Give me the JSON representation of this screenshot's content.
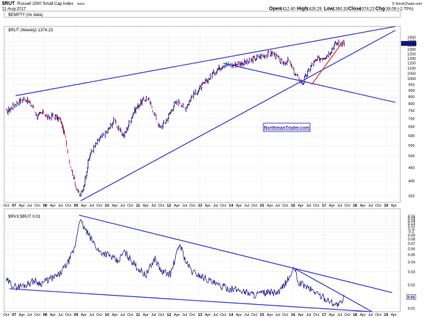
{
  "header": {
    "symbol": "$RUT",
    "name": "Russell 2000 Small Cap Index",
    "exchange": "INDX",
    "date": "11-Aug-2017",
    "open_label": "Open",
    "open": "1412.40",
    "high_label": "High",
    "high": "1426.29",
    "low_label": "Low",
    "low": "1360.33",
    "close_label": "Close",
    "close": "1374.23",
    "chg_label": "Chg",
    "chg": "-38.09 (-2.70%)",
    "chg_color": "#cc0000",
    "source": "© StockCharts.com"
  },
  "watermark": "NorthmanTrader.com",
  "panels": {
    "empty": {
      "legend": "$EMPTY (no data)"
    },
    "main": {
      "legend": "$RUT (Weekly) 1374.23",
      "last_value_badge": "1374.23"
    },
    "lower": {
      "legend": "$RVX:$RUT 0.01",
      "last_value_badge": "0.01"
    }
  },
  "colors": {
    "price_line": "#1a1a8c",
    "up_bar": "#1a1a8c",
    "down_bar": "#cc0033",
    "trendline": "#2b2bd9",
    "red_trendline": "#ee2222",
    "grid": "#e2e2e2",
    "watermark_bg": "#ffffff",
    "watermark_text": "#1a1aa8"
  },
  "chart_data": [
    {
      "type": "line",
      "title": "$RUT (Weekly) 1374.23",
      "scale": "log",
      "ylim": [
        330,
        1600
      ],
      "yticks": [
        1450,
        1400,
        1350,
        1300,
        1250,
        1200,
        1150,
        1100,
        1050,
        1000,
        950,
        900,
        850,
        800,
        750,
        700,
        650,
        600,
        550,
        500,
        450,
        400,
        350
      ],
      "xticks": [
        {
          "t": 0,
          "label": "Oct"
        },
        {
          "t": 0.25,
          "label": "07"
        },
        {
          "t": 0.5,
          "label": "Apr"
        },
        {
          "t": 0.75,
          "label": "Jul"
        },
        {
          "t": 1,
          "label": "Oct"
        },
        {
          "t": 1.25,
          "label": "08"
        },
        {
          "t": 1.5,
          "label": "Apr"
        },
        {
          "t": 1.75,
          "label": "Jul"
        },
        {
          "t": 2,
          "label": "Oct"
        },
        {
          "t": 2.25,
          "label": "09"
        },
        {
          "t": 2.5,
          "label": "Apr"
        },
        {
          "t": 2.75,
          "label": "Jul"
        },
        {
          "t": 3,
          "label": "Oct"
        },
        {
          "t": 3.25,
          "label": "10"
        },
        {
          "t": 3.5,
          "label": "Apr"
        },
        {
          "t": 3.75,
          "label": "Jul"
        },
        {
          "t": 4,
          "label": "Oct"
        },
        {
          "t": 4.25,
          "label": "11"
        },
        {
          "t": 4.5,
          "label": "Apr"
        },
        {
          "t": 4.75,
          "label": "Jul"
        },
        {
          "t": 5,
          "label": "Oct"
        },
        {
          "t": 5.25,
          "label": "12"
        },
        {
          "t": 5.5,
          "label": "Apr"
        },
        {
          "t": 5.75,
          "label": "Jul"
        },
        {
          "t": 6,
          "label": "Oct"
        },
        {
          "t": 6.25,
          "label": "13"
        },
        {
          "t": 6.5,
          "label": "Apr"
        },
        {
          "t": 6.75,
          "label": "Jul"
        },
        {
          "t": 7,
          "label": "Oct"
        },
        {
          "t": 7.25,
          "label": "14"
        },
        {
          "t": 7.5,
          "label": "Apr"
        },
        {
          "t": 7.75,
          "label": "Jul"
        },
        {
          "t": 8,
          "label": "Oct"
        },
        {
          "t": 8.25,
          "label": "15"
        },
        {
          "t": 8.5,
          "label": "Apr"
        },
        {
          "t": 8.75,
          "label": "Jul"
        },
        {
          "t": 9,
          "label": "Oct"
        },
        {
          "t": 9.25,
          "label": "16"
        },
        {
          "t": 9.5,
          "label": "Apr"
        },
        {
          "t": 9.75,
          "label": "Jul"
        },
        {
          "t": 10,
          "label": "Oct"
        },
        {
          "t": 10.25,
          "label": "17"
        },
        {
          "t": 10.5,
          "label": "Apr"
        },
        {
          "t": 10.75,
          "label": "Jul"
        },
        {
          "t": 11,
          "label": "Oct"
        },
        {
          "t": 11.25,
          "label": "18"
        },
        {
          "t": 11.5,
          "label": "Apr"
        },
        {
          "t": 11.75,
          "label": "Jul"
        },
        {
          "t": 12,
          "label": "Oct"
        },
        {
          "t": 12.25,
          "label": "19"
        },
        {
          "t": 12.5,
          "label": "Apr"
        }
      ],
      "series": [
        {
          "x": [
            0,
            0.3,
            0.6,
            0.85,
            1.0,
            1.2,
            1.35,
            1.5,
            1.75,
            1.9,
            2.05,
            2.2,
            2.35,
            2.45,
            2.7,
            3.0,
            3.25,
            3.5,
            3.6,
            3.8,
            4.1,
            4.3,
            4.55,
            4.8,
            4.95,
            5.2,
            5.4,
            5.6,
            5.75,
            6.0,
            6.3,
            6.7,
            7.0,
            7.3,
            7.5,
            7.8,
            8.0,
            8.25,
            8.6,
            8.9,
            9.1,
            9.3,
            9.55,
            9.85,
            10.05,
            10.35,
            10.6,
            10.75,
            10.9
          ],
          "values": [
            740,
            800,
            840,
            780,
            710,
            740,
            700,
            720,
            690,
            590,
            470,
            400,
            350,
            360,
            510,
            580,
            620,
            700,
            640,
            600,
            740,
            800,
            850,
            720,
            640,
            700,
            790,
            820,
            760,
            860,
            930,
            1060,
            1140,
            1130,
            1150,
            1160,
            1200,
            1230,
            1260,
            1150,
            1180,
            1050,
            960,
            1130,
            1190,
            1240,
            1360,
            1390,
            1374
          ]
        }
      ],
      "trendlines": [
        {
          "x": [
            0.3,
            12.55
          ],
          "y": [
            860,
            1600
          ]
        },
        {
          "x": [
            2.4,
            12.55
          ],
          "y": [
            335,
            1545
          ]
        },
        {
          "x": [
            7.0,
            12.55
          ],
          "y": [
            1150,
            810
          ]
        },
        {
          "x": [
            9.85,
            10.9
          ],
          "y": [
            950,
            1420
          ]
        }
      ]
    },
    {
      "type": "line",
      "title": "$RVX:$RUT 0.01",
      "scale": "log",
      "ylim": [
        0.009,
        0.2
      ],
      "yticks": [
        0.16,
        0.15,
        0.14,
        0.13,
        0.12,
        0.11,
        0.1,
        0.09,
        0.08,
        0.07,
        0.06,
        0.05,
        0.04,
        0.03,
        0.02,
        0.01
      ],
      "series": [
        {
          "x": [
            0,
            0.3,
            0.6,
            0.9,
            1.1,
            1.4,
            1.7,
            2.0,
            2.2,
            2.3,
            2.35,
            2.5,
            2.7,
            3.0,
            3.3,
            3.6,
            3.8,
            4.2,
            4.5,
            4.8,
            5.0,
            5.3,
            5.6,
            5.8,
            6.0,
            6.4,
            6.8,
            7.2,
            7.6,
            8.0,
            8.4,
            8.8,
            9.2,
            9.3,
            9.4,
            9.6,
            9.9,
            10.2,
            10.5,
            10.7,
            10.85,
            10.9
          ],
          "values": [
            0.023,
            0.019,
            0.02,
            0.023,
            0.021,
            0.024,
            0.027,
            0.04,
            0.06,
            0.1,
            0.145,
            0.115,
            0.085,
            0.055,
            0.05,
            0.04,
            0.055,
            0.035,
            0.027,
            0.045,
            0.03,
            0.028,
            0.07,
            0.04,
            0.03,
            0.025,
            0.02,
            0.018,
            0.017,
            0.015,
            0.016,
            0.016,
            0.028,
            0.034,
            0.022,
            0.02,
            0.017,
            0.014,
            0.012,
            0.011,
            0.012,
            0.014
          ]
        }
      ],
      "trendlines": [
        {
          "x": [
            2.35,
            12.45
          ],
          "y": [
            0.165,
            0.016
          ]
        },
        {
          "x": [
            0.1,
            11.8
          ],
          "y": [
            0.018,
            0.009
          ]
        },
        {
          "x": [
            9.3,
            11.8
          ],
          "y": [
            0.033,
            0.009
          ]
        }
      ]
    }
  ]
}
